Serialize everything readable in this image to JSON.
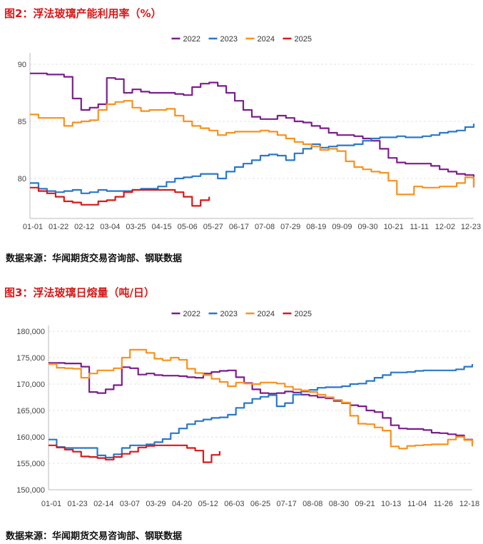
{
  "figure1": {
    "title": "图2：浮法玻璃产能利用率（%）",
    "source": "数据来源：华闻期货交易咨询部、钢联数据"
  },
  "figure2": {
    "title": "图3：浮法玻璃日熔量（吨/日）",
    "source": "数据来源：华闻期货交易咨询部、钢联数据"
  },
  "chart_data": [
    {
      "type": "line",
      "title": "图2：浮法玻璃产能利用率（%）",
      "xlabel": "",
      "ylabel": "",
      "x_tick_labels": [
        "01-01",
        "01-22",
        "02-12",
        "03-04",
        "03-25",
        "04-15",
        "05-06",
        "05-27",
        "06-17",
        "07-08",
        "07-29",
        "08-19",
        "09-09",
        "09-30",
        "10-21",
        "11-11",
        "12-02",
        "12-23"
      ],
      "y_ticks": [
        80,
        85,
        90
      ],
      "ylim": [
        76.5,
        90.5
      ],
      "x_domain_days": [
        0,
        364
      ],
      "grid": true,
      "legend": "top-center",
      "series": [
        {
          "name": "2022",
          "color": "#7b1e8c",
          "x": [
            0,
            14,
            28,
            35,
            42,
            49,
            56,
            63,
            70,
            77,
            84,
            91,
            98,
            105,
            112,
            119,
            126,
            133,
            140,
            147,
            154,
            161,
            168,
            175,
            182,
            189,
            196,
            203,
            210,
            217,
            224,
            231,
            238,
            245,
            252,
            259,
            266,
            273,
            280,
            287,
            294,
            301,
            308,
            315,
            322,
            329,
            336,
            343,
            350,
            357,
            364
          ],
          "y": [
            89.2,
            89.1,
            88.9,
            87.0,
            86.0,
            86.2,
            86.5,
            88.8,
            88.7,
            87.5,
            87.8,
            87.6,
            87.5,
            87.5,
            87.5,
            87.4,
            87.3,
            88.0,
            88.3,
            88.4,
            88.1,
            87.5,
            86.8,
            86.0,
            85.4,
            85.2,
            85.2,
            85.5,
            85.3,
            85.0,
            84.9,
            84.6,
            84.4,
            84.0,
            83.8,
            83.8,
            83.7,
            83.5,
            83.3,
            82.6,
            81.8,
            81.4,
            81.3,
            81.3,
            81.3,
            81.1,
            80.8,
            80.6,
            80.4,
            80.3,
            79.3
          ]
        },
        {
          "name": "2023",
          "color": "#2a78c8",
          "x": [
            0,
            7,
            14,
            21,
            28,
            35,
            42,
            49,
            56,
            63,
            70,
            77,
            84,
            91,
            98,
            105,
            112,
            119,
            126,
            133,
            140,
            147,
            154,
            161,
            168,
            175,
            182,
            189,
            196,
            203,
            210,
            217,
            224,
            231,
            238,
            245,
            252,
            259,
            266,
            273,
            280,
            287,
            294,
            301,
            308,
            315,
            322,
            329,
            336,
            343,
            350,
            357,
            364
          ],
          "y": [
            79.6,
            79.1,
            78.9,
            78.8,
            78.9,
            79.0,
            78.7,
            78.8,
            79.0,
            78.9,
            78.9,
            78.9,
            79.0,
            79.1,
            79.1,
            79.3,
            79.7,
            80.0,
            80.1,
            80.2,
            80.4,
            80.4,
            80.0,
            80.6,
            81.0,
            81.3,
            81.6,
            82.0,
            82.1,
            82.0,
            81.6,
            82.2,
            82.6,
            83.0,
            82.7,
            82.8,
            82.9,
            82.9,
            83.0,
            83.3,
            83.5,
            83.6,
            83.6,
            83.7,
            83.6,
            83.6,
            83.7,
            83.8,
            84.0,
            84.1,
            84.2,
            84.5,
            84.8
          ]
        },
        {
          "name": "2024",
          "color": "#f7921e",
          "x": [
            0,
            7,
            14,
            21,
            28,
            35,
            42,
            49,
            56,
            63,
            70,
            77,
            84,
            91,
            98,
            105,
            112,
            119,
            126,
            133,
            140,
            147,
            154,
            161,
            168,
            175,
            182,
            189,
            196,
            203,
            210,
            217,
            224,
            231,
            238,
            245,
            252,
            259,
            266,
            273,
            280,
            287,
            294,
            301,
            308,
            315,
            322,
            329,
            336,
            343,
            350,
            357,
            364
          ],
          "y": [
            85.6,
            85.3,
            85.3,
            85.3,
            84.6,
            84.9,
            85.0,
            85.1,
            86.0,
            86.5,
            86.7,
            86.8,
            86.2,
            85.9,
            86.0,
            86.0,
            86.1,
            85.5,
            85.0,
            84.6,
            84.4,
            84.2,
            83.8,
            84.0,
            84.1,
            84.1,
            84.1,
            84.2,
            84.1,
            83.8,
            83.5,
            83.2,
            83.0,
            82.8,
            82.5,
            82.6,
            82.4,
            81.5,
            81.0,
            80.8,
            80.6,
            80.5,
            79.8,
            78.6,
            78.6,
            79.3,
            79.2,
            79.2,
            79.3,
            79.3,
            79.6,
            80.1,
            79.2
          ]
        },
        {
          "name": "2025",
          "color": "#d71a1a",
          "x": [
            0,
            7,
            14,
            21,
            28,
            35,
            42,
            49,
            56,
            63,
            70,
            77,
            84,
            91,
            98,
            105,
            112,
            119,
            126,
            133,
            140,
            147
          ],
          "y": [
            79.2,
            78.9,
            78.7,
            78.4,
            78.0,
            77.9,
            77.7,
            77.7,
            78.0,
            78.1,
            78.4,
            78.8,
            79.0,
            79.0,
            79.0,
            79.0,
            79.0,
            78.8,
            78.4,
            77.6,
            78.1,
            78.4
          ]
        }
      ]
    },
    {
      "type": "line",
      "title": "图3：浮法玻璃日熔量（吨/日）",
      "xlabel": "",
      "ylabel": "",
      "x_tick_labels": [
        "01-01",
        "01-23",
        "02-14",
        "03-07",
        "03-29",
        "04-20",
        "05-12",
        "06-03",
        "06-25",
        "07-17",
        "08-08",
        "08-30",
        "09-21",
        "10-13",
        "11-04",
        "11-26",
        "12-18"
      ],
      "y_ticks": [
        150000,
        155000,
        160000,
        165000,
        170000,
        175000,
        180000
      ],
      "y_tick_labels": [
        "150,000",
        "155,000",
        "160,000",
        "165,000",
        "170,000",
        "175,000",
        "180,000"
      ],
      "ylim": [
        150000,
        180000
      ],
      "x_domain_days": [
        0,
        364
      ],
      "grid": true,
      "legend": "top-center",
      "series": [
        {
          "name": "2022",
          "color": "#7b1e8c",
          "x": [
            0,
            14,
            28,
            35,
            42,
            49,
            56,
            63,
            70,
            77,
            84,
            91,
            98,
            105,
            112,
            119,
            126,
            133,
            140,
            147,
            154,
            161,
            168,
            175,
            182,
            189,
            196,
            203,
            210,
            217,
            224,
            231,
            238,
            245,
            252,
            259,
            266,
            273,
            280,
            287,
            294,
            301,
            308,
            315,
            322,
            329,
            336,
            343,
            350,
            357,
            364
          ],
          "y": [
            174000,
            173900,
            173300,
            168500,
            168300,
            169000,
            169800,
            173200,
            173000,
            171800,
            172000,
            171700,
            171600,
            171600,
            171500,
            171300,
            171200,
            172000,
            172300,
            172500,
            172600,
            171300,
            170200,
            169000,
            168300,
            168200,
            168300,
            168600,
            168400,
            168000,
            167800,
            167500,
            167300,
            166800,
            166400,
            166000,
            165800,
            165000,
            164700,
            163600,
            162200,
            161600,
            161500,
            161500,
            161300,
            160800,
            160700,
            160500,
            160300,
            159500,
            158500
          ]
        },
        {
          "name": "2023",
          "color": "#2a78c8",
          "x": [
            0,
            7,
            14,
            21,
            28,
            35,
            42,
            49,
            56,
            63,
            70,
            77,
            84,
            91,
            98,
            105,
            112,
            119,
            126,
            133,
            140,
            147,
            154,
            161,
            168,
            175,
            182,
            189,
            196,
            203,
            210,
            217,
            224,
            231,
            238,
            245,
            252,
            259,
            266,
            273,
            280,
            287,
            294,
            301,
            308,
            315,
            322,
            329,
            336,
            343,
            350,
            357,
            364
          ],
          "y": [
            159500,
            158100,
            157900,
            157900,
            157900,
            157900,
            156500,
            156100,
            156700,
            157900,
            158400,
            158400,
            158600,
            159000,
            159600,
            160700,
            161600,
            162400,
            163000,
            163300,
            163600,
            163700,
            164200,
            165500,
            166400,
            167200,
            167600,
            167900,
            165800,
            166400,
            168000,
            168600,
            168900,
            169300,
            169400,
            169400,
            169600,
            170000,
            170100,
            170600,
            171200,
            171700,
            172200,
            172200,
            172300,
            172500,
            172600,
            172600,
            172600,
            172600,
            172800,
            173300,
            173800
          ]
        },
        {
          "name": "2024",
          "color": "#f7921e",
          "x": [
            0,
            7,
            14,
            21,
            28,
            35,
            42,
            49,
            56,
            63,
            70,
            77,
            84,
            91,
            98,
            105,
            112,
            119,
            126,
            133,
            140,
            147,
            154,
            161,
            168,
            175,
            182,
            189,
            196,
            203,
            210,
            217,
            224,
            231,
            238,
            245,
            252,
            259,
            266,
            273,
            280,
            287,
            294,
            301,
            308,
            315,
            322,
            329,
            336,
            343,
            350,
            357,
            364
          ],
          "y": [
            173800,
            173100,
            173000,
            172900,
            171200,
            172000,
            172600,
            172600,
            173000,
            175000,
            176500,
            176500,
            175900,
            174800,
            174500,
            175000,
            174600,
            172900,
            172100,
            171700,
            171000,
            170400,
            169600,
            170300,
            170100,
            170000,
            170300,
            170300,
            170100,
            169500,
            169000,
            168800,
            168500,
            168000,
            167500,
            167000,
            166500,
            164000,
            162500,
            162400,
            161800,
            161200,
            158200,
            157800,
            158300,
            158400,
            158500,
            158600,
            158600,
            159500,
            160000,
            159400,
            158200
          ]
        },
        {
          "name": "2025",
          "color": "#d71a1a",
          "x": [
            0,
            7,
            14,
            21,
            28,
            35,
            42,
            49,
            56,
            63,
            70,
            77,
            84,
            91,
            98,
            105,
            112,
            119,
            126,
            133,
            140,
            147
          ],
          "y": [
            158400,
            158000,
            157600,
            157200,
            156300,
            156200,
            156000,
            155700,
            156200,
            156800,
            157200,
            158000,
            158300,
            158400,
            158400,
            158400,
            158400,
            157900,
            157400,
            155200,
            156600,
            157300
          ]
        }
      ]
    }
  ]
}
